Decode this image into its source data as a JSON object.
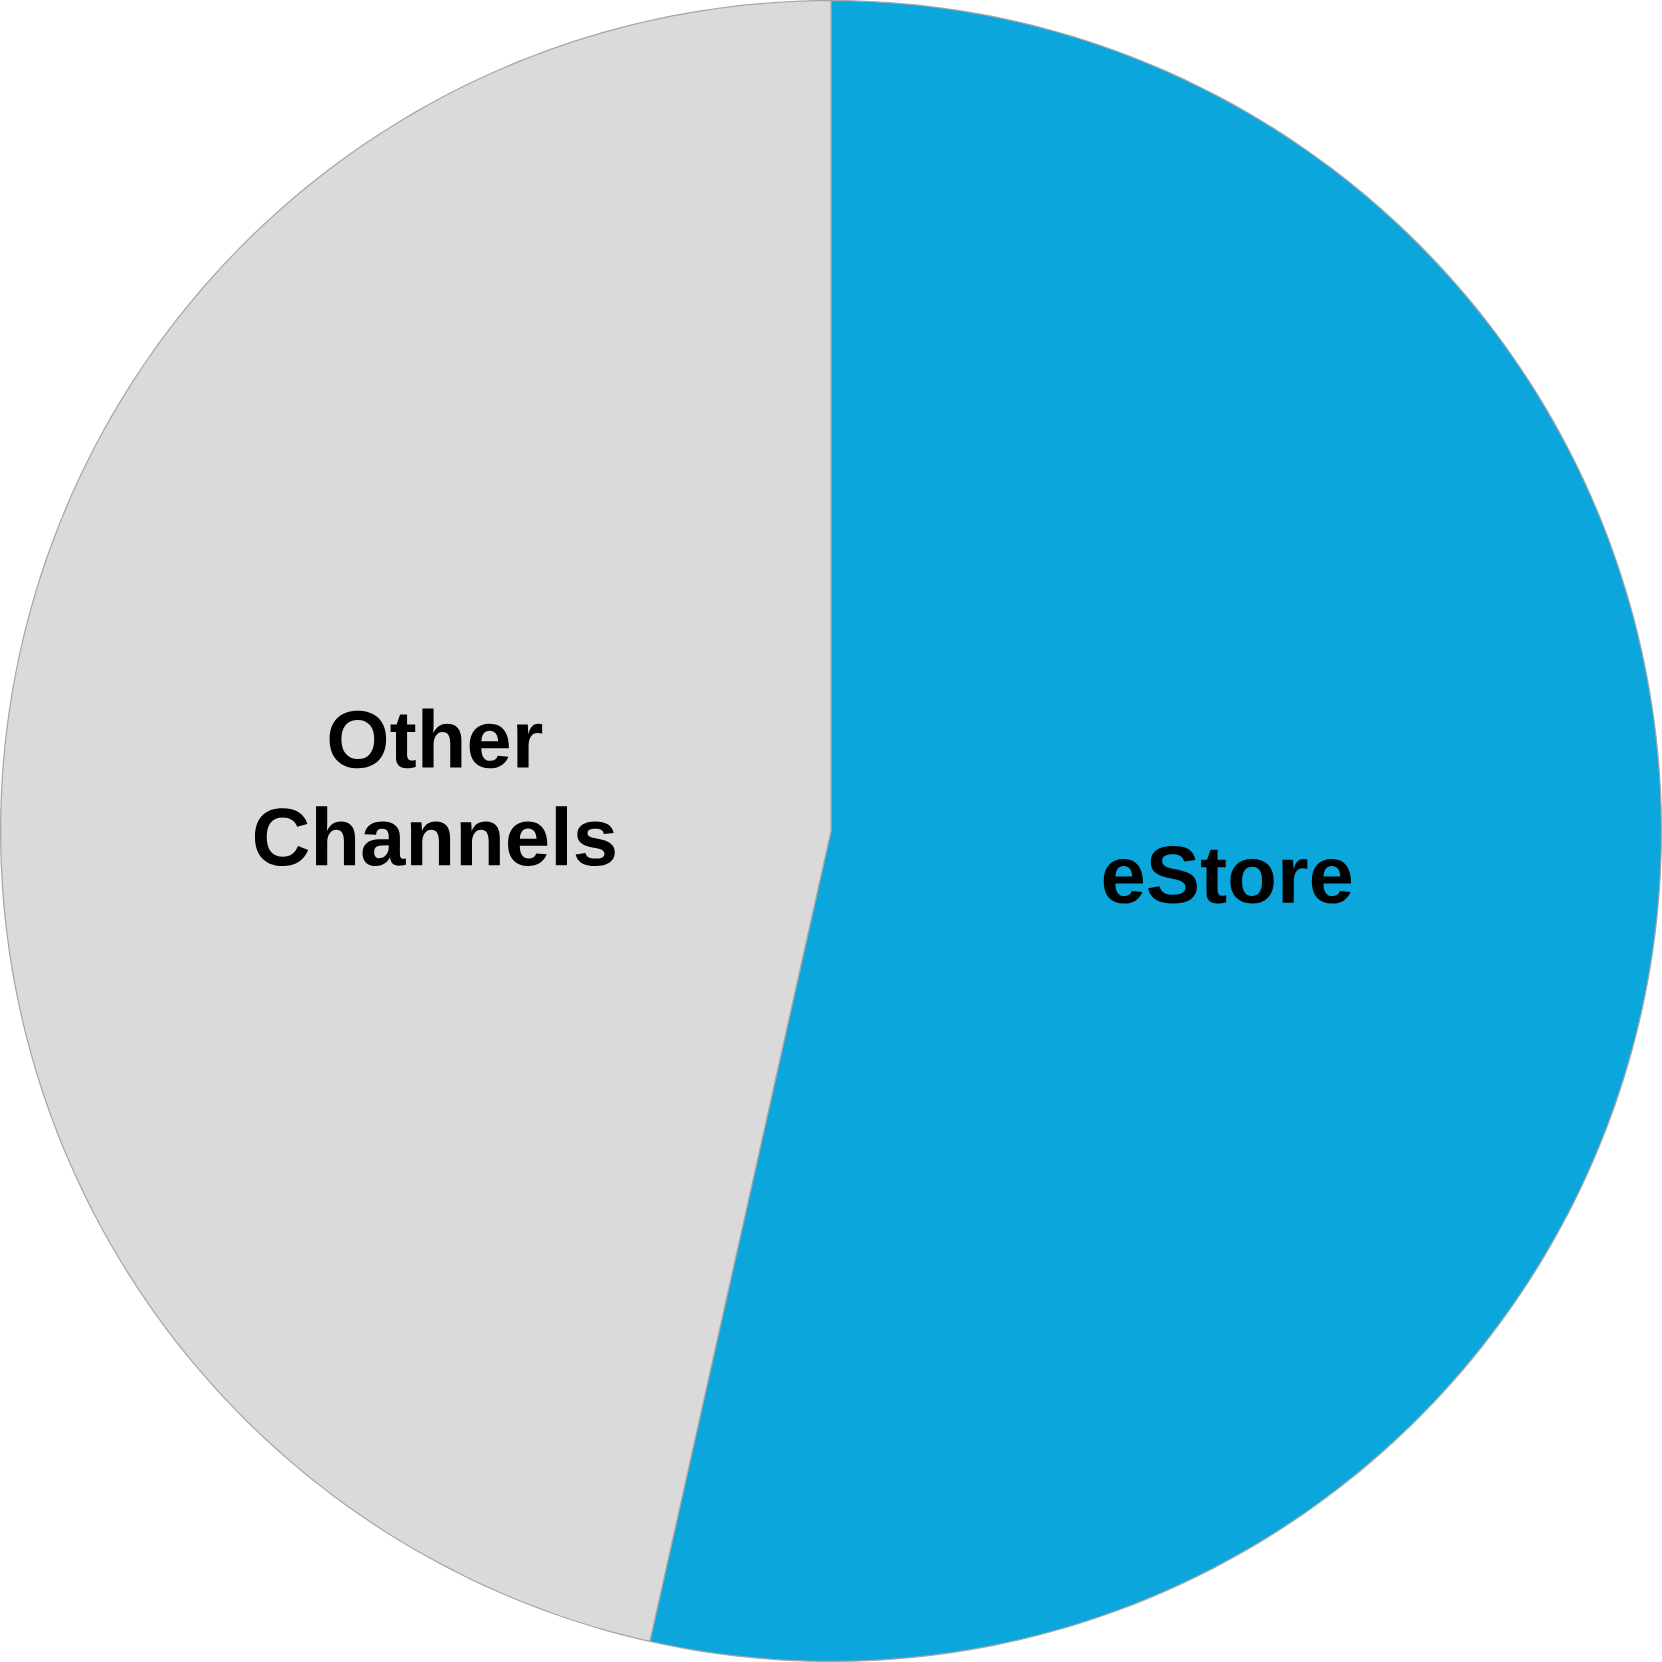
{
  "chart_data": {
    "type": "pie",
    "categories": [
      "eStore",
      "Other Channels"
    ],
    "values": [
      53.5,
      46.5
    ],
    "colors": [
      "#0aa6dc",
      "#dadada"
    ]
  }
}
